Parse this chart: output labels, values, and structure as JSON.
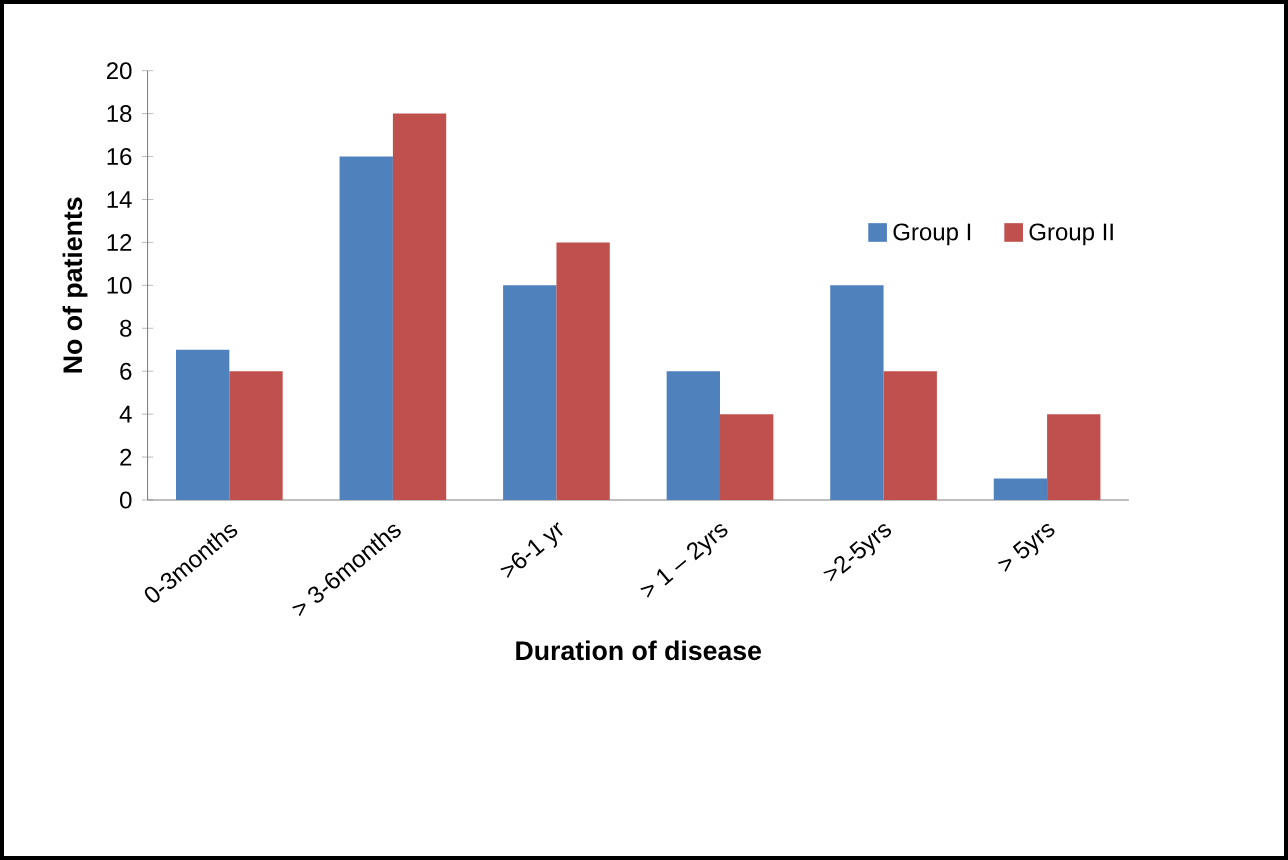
{
  "chart_data": {
    "type": "bar",
    "xlabel": "Duration of disease",
    "ylabel": "No of patients",
    "categories": [
      "0-3months",
      "> 3-6months",
      ">6-1 yr",
      "> 1 – 2yrs",
      ">2-5yrs",
      "> 5yrs"
    ],
    "series": [
      {
        "name": "Group I",
        "color": "#4f81bd",
        "values": [
          7,
          16,
          10,
          6,
          10,
          1
        ]
      },
      {
        "name": "Group II",
        "color": "#c0504d",
        "values": [
          6,
          18,
          12,
          4,
          6,
          4
        ]
      }
    ],
    "ylim": [
      0,
      20
    ],
    "yticks": [
      0,
      2,
      4,
      6,
      8,
      10,
      12,
      14,
      16,
      18,
      20
    ],
    "grid": false,
    "legend": "right"
  }
}
